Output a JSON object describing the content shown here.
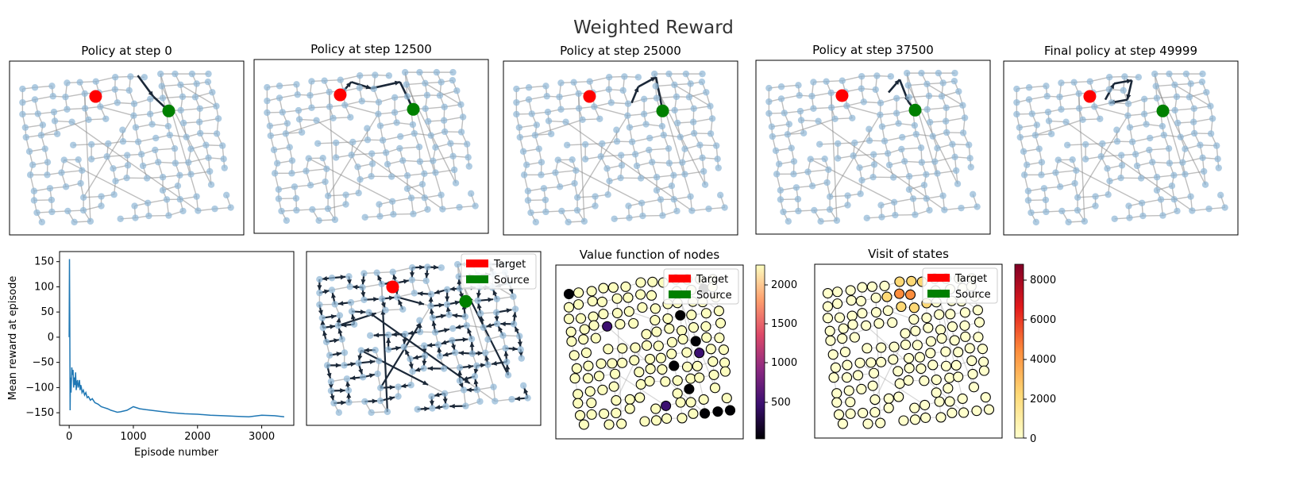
{
  "figure": {
    "suptitle": "Weighted Reward",
    "colors": {
      "node": "#8fb7d6",
      "edge": "#888888",
      "arrow": "#1b2838",
      "target": "#ff0000",
      "source": "#008000",
      "reward_line": "#1f77b4"
    }
  },
  "policy_panels": [
    {
      "title": "Policy at step 0",
      "arrows": "sparse-left"
    },
    {
      "title": "Policy at step 12500",
      "arrows": "path-1"
    },
    {
      "title": "Policy at step 25000",
      "arrows": "path-2"
    },
    {
      "title": "Policy at step 37500",
      "arrows": "path-3"
    },
    {
      "title": "Final policy at step 49999",
      "arrows": "path-4"
    }
  ],
  "legend": {
    "target": "Target",
    "source": "Source"
  },
  "value_panel": {
    "title": "Value function of nodes",
    "colorbar_ticks": [
      "500",
      "1000",
      "1500",
      "2000"
    ],
    "colormap": "magma"
  },
  "visit_panel": {
    "title": "Visit of states",
    "colorbar_ticks": [
      "0",
      "2000",
      "4000",
      "6000",
      "8000"
    ],
    "colormap": "YlOrRd"
  },
  "chart_data": [
    {
      "type": "line",
      "title": "",
      "xlabel": "Episode number",
      "ylabel": "Mean reward at episode",
      "xlim": [
        -150,
        3500
      ],
      "ylim": [
        -175,
        170
      ],
      "xticks": [
        0,
        1000,
        2000,
        3000
      ],
      "yticks": [
        -150,
        -100,
        -50,
        0,
        50,
        100,
        150
      ],
      "series": [
        {
          "x": [
            0,
            5,
            10,
            15,
            20,
            30,
            40,
            50,
            60,
            70,
            80,
            90,
            100,
            110,
            120,
            130,
            140,
            150,
            160,
            170,
            180,
            190,
            200,
            220,
            240,
            260,
            280,
            300,
            330,
            360,
            400,
            450,
            500,
            550,
            600,
            650,
            700,
            750,
            800,
            900,
            1000,
            1100,
            1200,
            1400,
            1600,
            1800,
            2000,
            2200,
            2400,
            2600,
            2800,
            3000,
            3200,
            3350
          ],
          "y": [
            0,
            155,
            20,
            -145,
            -80,
            -110,
            -60,
            -75,
            -65,
            -100,
            -80,
            -95,
            -70,
            -105,
            -90,
            -85,
            -100,
            -95,
            -85,
            -105,
            -95,
            -100,
            -110,
            -105,
            -115,
            -110,
            -120,
            -118,
            -125,
            -122,
            -130,
            -133,
            -138,
            -140,
            -142,
            -145,
            -147,
            -149,
            -148,
            -145,
            -138,
            -142,
            -144,
            -147,
            -150,
            -152,
            -153,
            -155,
            -156,
            -157,
            -158,
            -155,
            -156,
            -158
          ]
        }
      ]
    }
  ]
}
